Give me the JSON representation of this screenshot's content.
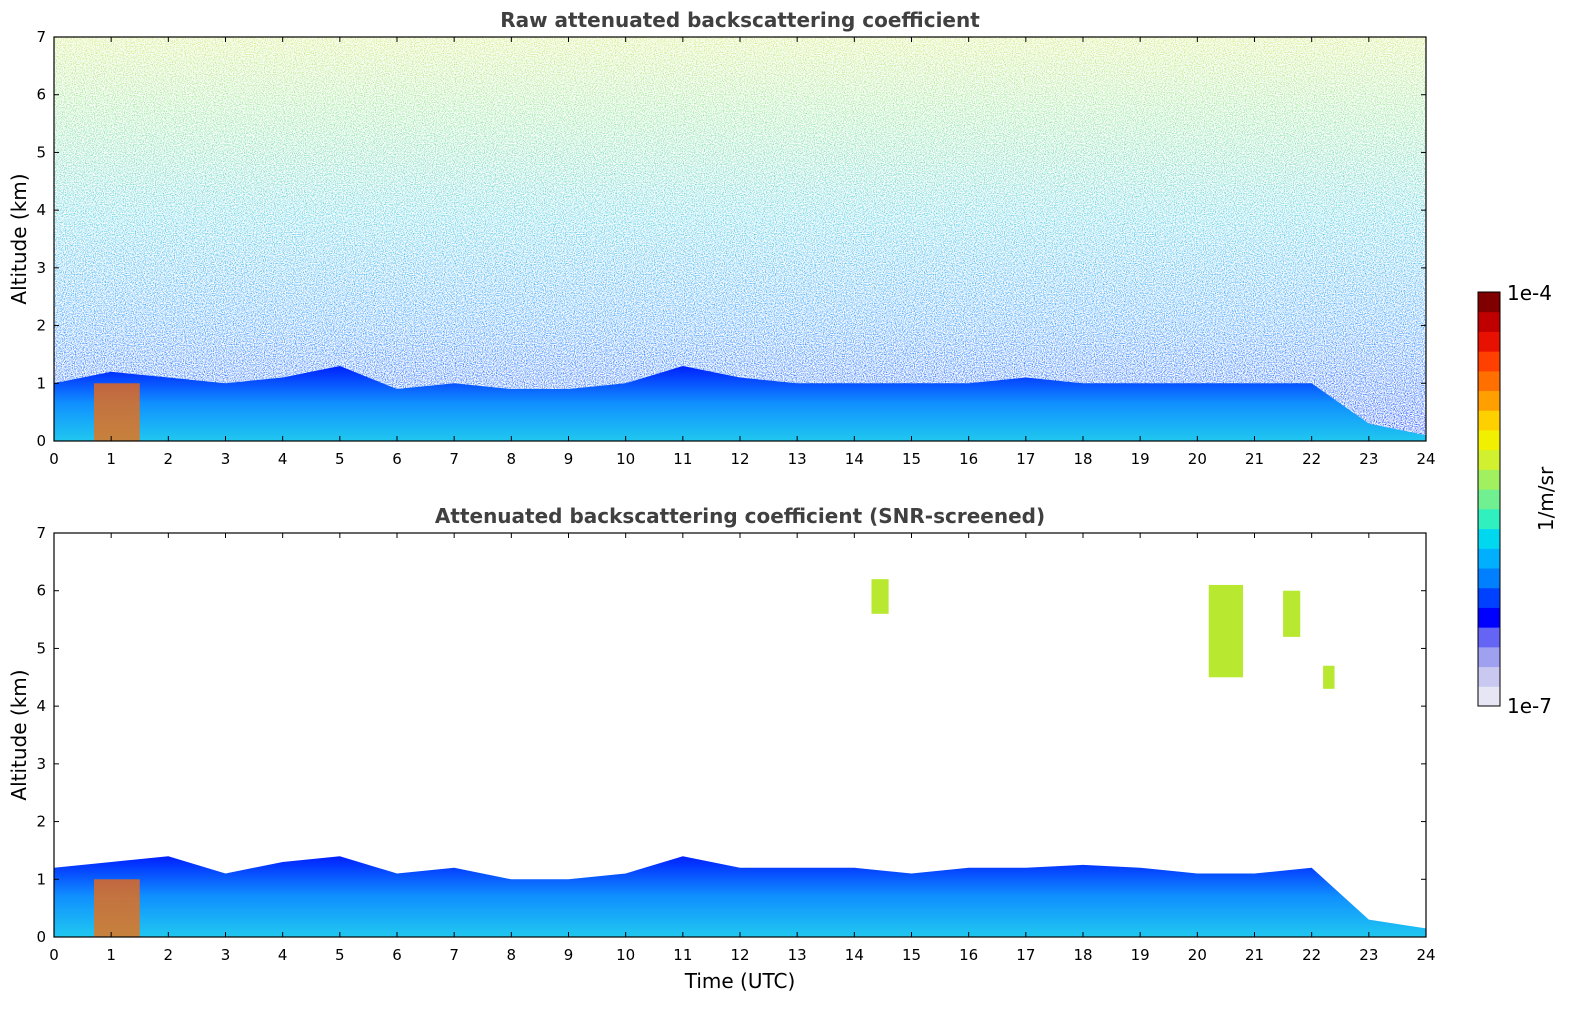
{
  "chart_data": [
    {
      "type": "heatmap",
      "title": "Raw attenuated backscattering coefficient",
      "xlabel": "",
      "ylabel": "Altitude (km)",
      "xlim": [
        0,
        24
      ],
      "ylim": [
        0,
        7
      ],
      "xticks": [
        0,
        1,
        2,
        3,
        4,
        5,
        6,
        7,
        8,
        9,
        10,
        11,
        12,
        13,
        14,
        15,
        16,
        17,
        18,
        19,
        20,
        21,
        22,
        23,
        24
      ],
      "yticks": [
        0,
        1,
        2,
        3,
        4,
        5,
        6,
        7
      ],
      "boundary_layer_top_km": [
        [
          0,
          1.0
        ],
        [
          1,
          1.2
        ],
        [
          2,
          1.1
        ],
        [
          3,
          1.0
        ],
        [
          4,
          1.1
        ],
        [
          5,
          1.3
        ],
        [
          6,
          0.9
        ],
        [
          7,
          1.0
        ],
        [
          8,
          0.9
        ],
        [
          9,
          0.9
        ],
        [
          10,
          1.0
        ],
        [
          11,
          1.3
        ],
        [
          12,
          1.1
        ],
        [
          13,
          1.0
        ],
        [
          14,
          1.0
        ],
        [
          15,
          1.0
        ],
        [
          16,
          1.0
        ],
        [
          17,
          1.1
        ],
        [
          18,
          1.0
        ],
        [
          19,
          1.0
        ],
        [
          20,
          1.0
        ],
        [
          21,
          1.0
        ],
        [
          22,
          1.0
        ],
        [
          23,
          0.3
        ],
        [
          24,
          0.1
        ]
      ],
      "noise_background": true
    },
    {
      "type": "heatmap",
      "title": "Attenuated backscattering coefficient (SNR-screened)",
      "xlabel": "Time (UTC)",
      "ylabel": "Altitude (km)",
      "xlim": [
        0,
        24
      ],
      "ylim": [
        0,
        7
      ],
      "xticks": [
        0,
        1,
        2,
        3,
        4,
        5,
        6,
        7,
        8,
        9,
        10,
        11,
        12,
        13,
        14,
        15,
        16,
        17,
        18,
        19,
        20,
        21,
        22,
        23,
        24
      ],
      "yticks": [
        0,
        1,
        2,
        3,
        4,
        5,
        6,
        7
      ],
      "boundary_layer_top_km": [
        [
          0,
          1.2
        ],
        [
          1,
          1.3
        ],
        [
          2,
          1.4
        ],
        [
          3,
          1.1
        ],
        [
          4,
          1.3
        ],
        [
          5,
          1.4
        ],
        [
          6,
          1.1
        ],
        [
          7,
          1.2
        ],
        [
          8,
          1.0
        ],
        [
          9,
          1.0
        ],
        [
          10,
          1.1
        ],
        [
          11,
          1.4
        ],
        [
          12,
          1.2
        ],
        [
          13,
          1.2
        ],
        [
          14,
          1.2
        ],
        [
          15,
          1.1
        ],
        [
          16,
          1.2
        ],
        [
          17,
          1.2
        ],
        [
          18,
          1.25
        ],
        [
          19,
          1.2
        ],
        [
          20,
          1.1
        ],
        [
          21,
          1.1
        ],
        [
          22,
          1.2
        ],
        [
          23,
          0.3
        ],
        [
          24,
          0.15
        ]
      ],
      "cirrus_patches": [
        {
          "t_start": 14.3,
          "t_end": 14.6,
          "alt_bottom": 5.6,
          "alt_top": 6.2
        },
        {
          "t_start": 20.2,
          "t_end": 20.8,
          "alt_bottom": 4.5,
          "alt_top": 6.1
        },
        {
          "t_start": 21.5,
          "t_end": 21.8,
          "alt_bottom": 5.2,
          "alt_top": 6.0
        },
        {
          "t_start": 22.2,
          "t_end": 22.4,
          "alt_bottom": 4.3,
          "alt_top": 4.7
        }
      ],
      "noise_background": false
    }
  ],
  "colorbar": {
    "label": "1/m/sr",
    "max_label": "1e-4",
    "min_label": "1e-7",
    "colors": [
      "#e6e6f5",
      "#c8c8f0",
      "#a0a0f0",
      "#6464f5",
      "#0000ff",
      "#0040ff",
      "#0080ff",
      "#00b0ff",
      "#00d8f0",
      "#30f0c0",
      "#70f090",
      "#a0f060",
      "#d0f030",
      "#f0f000",
      "#ffd000",
      "#ffa000",
      "#ff7000",
      "#ff4000",
      "#e81000",
      "#c00000",
      "#800000"
    ]
  }
}
